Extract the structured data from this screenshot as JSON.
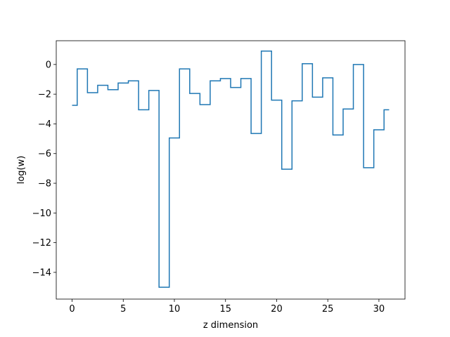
{
  "chart_data": {
    "type": "line",
    "drawstyle": "steps-mid",
    "title": "",
    "xlabel": "z dimension",
    "ylabel": "log(w)",
    "xlim": [
      -1.55,
      32.55
    ],
    "ylim": [
      -15.8,
      1.6
    ],
    "xticks": [
      0,
      5,
      10,
      15,
      20,
      25,
      30
    ],
    "yticks": [
      0,
      -2,
      -4,
      -6,
      -8,
      -10,
      -12,
      -14
    ],
    "grid": false,
    "legend": "none",
    "series_color": "#1f77b4",
    "x": [
      0,
      1,
      2,
      3,
      4,
      5,
      6,
      7,
      8,
      9,
      10,
      11,
      12,
      13,
      14,
      15,
      16,
      17,
      18,
      19,
      20,
      21,
      22,
      23,
      24,
      25,
      26,
      27,
      28,
      29,
      30,
      31
    ],
    "y": [
      -2.75,
      -0.3,
      -1.9,
      -1.4,
      -1.7,
      -1.25,
      -1.1,
      -3.05,
      -1.75,
      -15.0,
      -4.95,
      -0.3,
      -1.95,
      -2.7,
      -1.1,
      -0.95,
      -1.55,
      -0.95,
      -4.65,
      0.9,
      -2.4,
      -7.05,
      -2.45,
      0.05,
      -2.2,
      -0.9,
      -4.75,
      -3.0,
      0.0,
      -6.95,
      -4.4,
      -3.05
    ]
  }
}
